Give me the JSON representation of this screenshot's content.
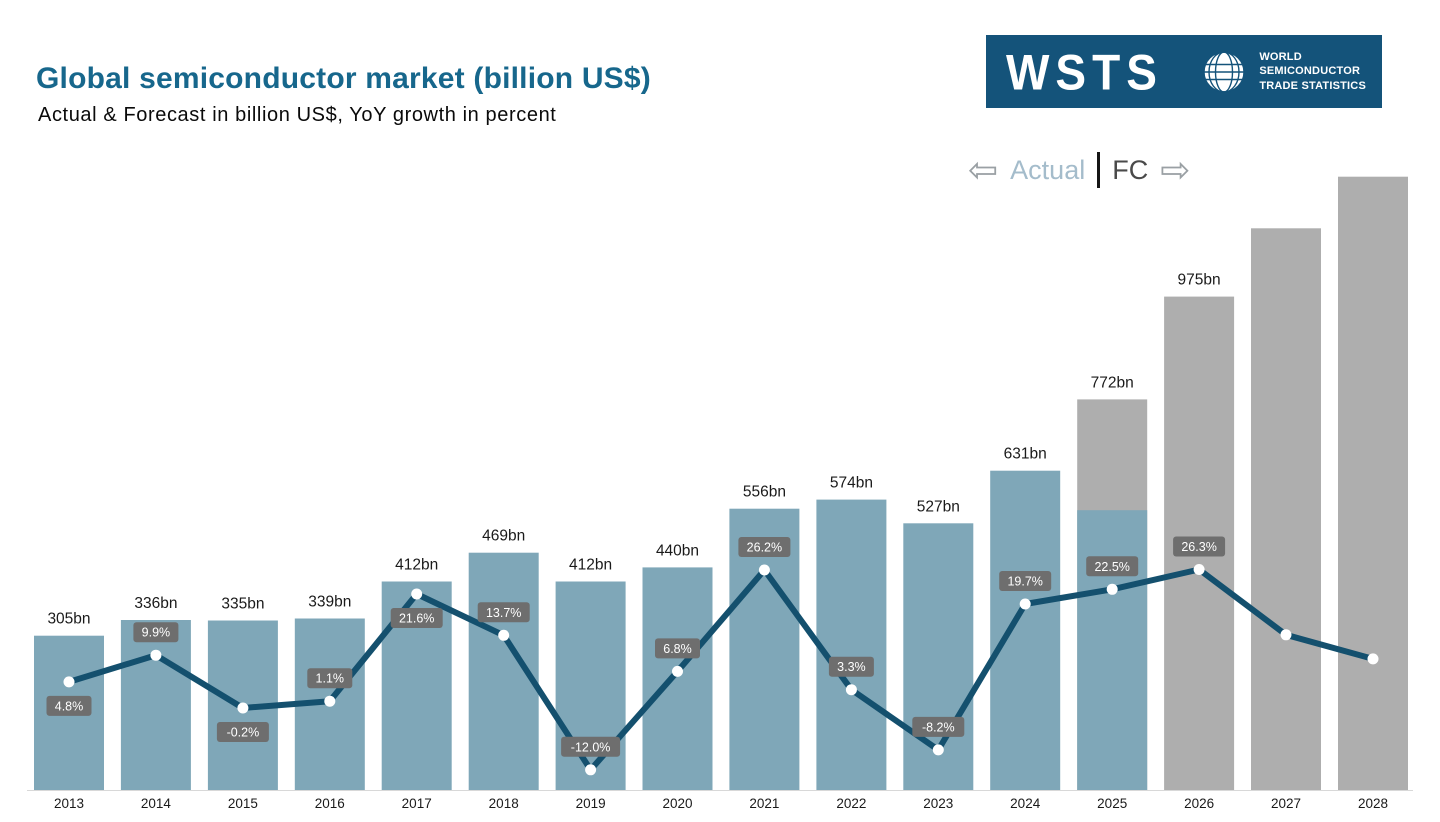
{
  "header": {
    "title": "Global semiconductor market (billion US$)",
    "subtitle": "Actual & Forecast in billion US$, YoY growth in percent"
  },
  "logo": {
    "brand": "WSTS",
    "caption_lines": [
      "WORLD",
      "SEMICONDUCTOR",
      "TRADE STATISTICS"
    ],
    "bg_color": "#14537A"
  },
  "legend": {
    "left_arrow": "⇦",
    "actual_label": "Actual",
    "fc_label": "FC",
    "right_arrow": "⇨"
  },
  "chart_data": {
    "type": "bar",
    "combo": "bar+line",
    "title": "Global semiconductor market (billion US$)",
    "value_axis_visible": false,
    "categories": [
      "2013",
      "2014",
      "2015",
      "2016",
      "2017",
      "2018",
      "2019",
      "2020",
      "2021",
      "2022",
      "2023",
      "2024",
      "2025",
      "2026",
      "2027",
      "2028"
    ],
    "bars": {
      "series_name": "Market size (billion US$)",
      "values": [
        305,
        336,
        335,
        339,
        412,
        469,
        412,
        440,
        556,
        574,
        527,
        631,
        772,
        975,
        1110,
        1212
      ],
      "labels": [
        "305bn",
        "336bn",
        "335bn",
        "339bn",
        "412bn",
        "469bn",
        "412bn",
        "440bn",
        "556bn",
        "574bn",
        "527bn",
        "631bn",
        "772bn",
        "975bn",
        "",
        ""
      ],
      "types": [
        "actual",
        "actual",
        "actual",
        "actual",
        "actual",
        "actual",
        "actual",
        "actual",
        "actual",
        "actual",
        "actual",
        "actual",
        "mixed",
        "forecast",
        "forecast",
        "forecast"
      ],
      "mixed_actual_portion": 553,
      "actual_color": "#7FA7B8",
      "forecast_color": "#AEAEAE",
      "axis_min": 0,
      "axis_max": 1250
    },
    "line": {
      "series_name": "YoY growth (%)",
      "values": [
        4.8,
        9.9,
        -0.2,
        1.1,
        21.6,
        13.7,
        -12.0,
        6.8,
        26.2,
        3.3,
        -8.2,
        19.7,
        22.5,
        26.3,
        13.8,
        9.2
      ],
      "labels": [
        "4.8%",
        "9.9%",
        "-0.2%",
        "1.1%",
        "21.6%",
        "13.7%",
        "-12.0%",
        "6.8%",
        "26.2%",
        "3.3%",
        "-8.2%",
        "19.7%",
        "22.5%",
        "26.3%",
        "",
        ""
      ],
      "label_positions": [
        "below",
        "above",
        "below",
        "above",
        "below",
        "above",
        "above",
        "above",
        "above",
        "above",
        "above",
        "above",
        "above",
        "above",
        "",
        ""
      ],
      "color": "#14506E",
      "marker_color": "#FFFFFF",
      "badge_color": "#6E6E6E",
      "badge_text_color": "#FFFFFF"
    }
  },
  "colors": {
    "title": "#17678C",
    "axis_line": "#D8D8D8",
    "bar_label": "#1A1A1A",
    "year_label": "#1A1A1A"
  }
}
